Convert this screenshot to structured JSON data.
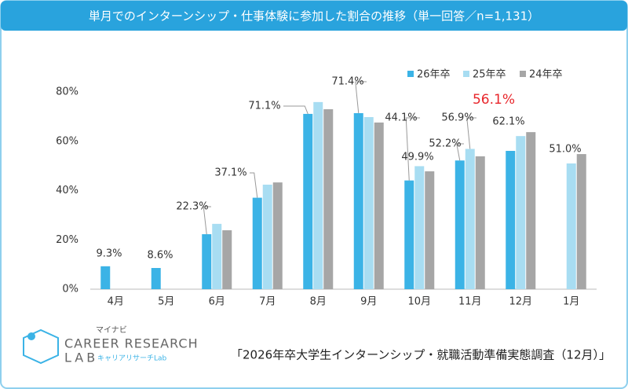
{
  "chart_data": {
    "type": "bar",
    "title": "単月でのインターンシップ・仕事体験に参加した割合の推移（単一回答／n=1,131）",
    "categories": [
      "4月",
      "5月",
      "6月",
      "7月",
      "8月",
      "9月",
      "10月",
      "11月",
      "12月",
      "1月"
    ],
    "series": [
      {
        "name": "26年卒",
        "color": "#3bb3e6",
        "values": [
          9.3,
          8.6,
          22.3,
          37.1,
          71.1,
          71.4,
          44.1,
          52.2,
          56.1,
          null
        ],
        "value_labels": [
          "9.3%",
          "8.6%",
          "22.3%",
          "37.1%",
          "71.1%",
          "71.4%",
          "44.1%",
          "52.2%",
          "56.1%",
          null
        ]
      },
      {
        "name": "25年卒",
        "color": "#a8ddf2",
        "values": [
          null,
          null,
          26.5,
          42.4,
          75.9,
          69.8,
          49.9,
          56.9,
          62.1,
          51.0
        ],
        "value_labels": [
          null,
          null,
          null,
          null,
          null,
          null,
          "49.9%",
          "56.9%",
          "62.1%",
          "51.0%"
        ]
      },
      {
        "name": "24年卒",
        "color": "#a6a6a6",
        "values": [
          null,
          null,
          23.9,
          43.3,
          73.0,
          67.6,
          47.8,
          53.9,
          63.7,
          54.8
        ]
      }
    ],
    "ylim": [
      0,
      80
    ],
    "yticks": [
      {
        "value": 0,
        "label": "0%"
      },
      {
        "value": 20,
        "label": "20%"
      },
      {
        "value": 40,
        "label": "40%"
      },
      {
        "value": 60,
        "label": "60%"
      },
      {
        "value": 80,
        "label": "80%"
      }
    ],
    "highlight_color": "#e8262b",
    "source": "「2026年卒大学生インターンシップ・就職活動準備実態調査（12月）」",
    "logo": {
      "brand": "マイナビ",
      "line1": "CAREER RESEARCH",
      "line2": "LAB",
      "sub": "キャリアリサーチLab"
    }
  }
}
